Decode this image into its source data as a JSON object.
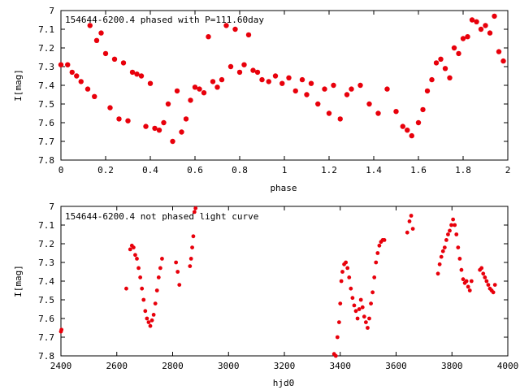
{
  "chart_data": [
    {
      "type": "scatter",
      "title": "154644-6200.4 phased with P=111.60day",
      "xlabel": "phase",
      "ylabel": "I[mag]",
      "xlim": [
        0,
        2
      ],
      "ylim": [
        7.8,
        7.0
      ],
      "y_inverted": true,
      "xticks": [
        "0",
        "0.2",
        "0.4",
        "0.6",
        "0.8",
        "1",
        "1.2",
        "1.4",
        "1.6",
        "1.8",
        "2"
      ],
      "yticks": [
        "7",
        "7.1",
        "7.2",
        "7.3",
        "7.4",
        "7.5",
        "7.6",
        "7.7",
        "7.8"
      ],
      "grid": false,
      "marker_color": "#e8000b",
      "series": [
        {
          "x": [
            0.0,
            0.03,
            0.05,
            0.07,
            0.09,
            0.12,
            0.13,
            0.15,
            0.16,
            0.18,
            0.2,
            0.22,
            0.24,
            0.26,
            0.28,
            0.3,
            0.32,
            0.34,
            0.36,
            0.38,
            0.4,
            0.42,
            0.44,
            0.46,
            0.48,
            0.5,
            0.52,
            0.54,
            0.56,
            0.58,
            0.6,
            0.62,
            0.64,
            0.66,
            0.68,
            0.7,
            0.72,
            0.74,
            0.76,
            0.78,
            0.8,
            0.82,
            0.84,
            0.86,
            0.88,
            0.9,
            0.93,
            0.96,
            0.99,
            1.02,
            1.05,
            1.08,
            1.1,
            1.12,
            1.15,
            1.18,
            1.2,
            1.22,
            1.25,
            1.28,
            1.3,
            1.34,
            1.38,
            1.42,
            1.46,
            1.5,
            1.53,
            1.55,
            1.57,
            1.6,
            1.62,
            1.64,
            1.66,
            1.68,
            1.7,
            1.72,
            1.74,
            1.76,
            1.78,
            1.8,
            1.82,
            1.84,
            1.86,
            1.88,
            1.9,
            1.92,
            1.94,
            1.96,
            1.98
          ],
          "y": [
            7.29,
            7.29,
            7.33,
            7.35,
            7.38,
            7.42,
            7.08,
            7.46,
            7.16,
            7.12,
            7.23,
            7.52,
            7.26,
            7.58,
            7.28,
            7.59,
            7.33,
            7.34,
            7.35,
            7.62,
            7.39,
            7.63,
            7.64,
            7.6,
            7.5,
            7.7,
            7.43,
            7.65,
            7.58,
            7.48,
            7.41,
            7.42,
            7.44,
            7.14,
            7.38,
            7.41,
            7.37,
            7.08,
            7.3,
            7.1,
            7.33,
            7.29,
            7.13,
            7.32,
            7.33,
            7.37,
            7.38,
            7.35,
            7.39,
            7.36,
            7.43,
            7.37,
            7.45,
            7.39,
            7.5,
            7.42,
            7.55,
            7.4,
            7.58,
            7.45,
            7.42,
            7.4,
            7.5,
            7.55,
            7.42,
            7.54,
            7.62,
            7.64,
            7.67,
            7.6,
            7.53,
            7.43,
            7.37,
            7.28,
            7.26,
            7.31,
            7.36,
            7.2,
            7.23,
            7.15,
            7.14,
            7.05,
            7.06,
            7.1,
            7.08,
            7.12,
            7.03,
            7.22,
            7.27
          ]
        }
      ]
    },
    {
      "type": "scatter",
      "title": "154644-6200.4 not phased light curve",
      "xlabel": "hjd0",
      "ylabel": "I[mag]",
      "xlim": [
        2400,
        4000
      ],
      "ylim": [
        7.8,
        7.0
      ],
      "y_inverted": true,
      "xticks": [
        "2400",
        "2600",
        "2800",
        "3000",
        "3200",
        "3400",
        "3600",
        "3800",
        "4000"
      ],
      "yticks": [
        "7",
        "7.1",
        "7.2",
        "7.3",
        "7.4",
        "7.5",
        "7.6",
        "7.7",
        "7.8"
      ],
      "grid": false,
      "marker_color": "#e8000b",
      "series": [
        {
          "x": [
            2400,
            2402,
            2634,
            2648,
            2654,
            2660,
            2666,
            2672,
            2678,
            2684,
            2690,
            2696,
            2702,
            2708,
            2714,
            2720,
            2726,
            2732,
            2738,
            2744,
            2750,
            2756,
            2762,
            2812,
            2818,
            2824,
            2862,
            2866,
            2870,
            2874,
            2878,
            2882,
            3378,
            3384,
            3390,
            3396,
            3400,
            3404,
            3408,
            3414,
            3420,
            3426,
            3432,
            3438,
            3444,
            3450,
            3456,
            3462,
            3468,
            3474,
            3480,
            3486,
            3492,
            3498,
            3504,
            3510,
            3516,
            3522,
            3528,
            3534,
            3540,
            3546,
            3552,
            3558,
            3640,
            3648,
            3654,
            3660,
            3750,
            3756,
            3762,
            3768,
            3774,
            3780,
            3786,
            3792,
            3798,
            3804,
            3810,
            3816,
            3822,
            3828,
            3834,
            3840,
            3846,
            3852,
            3858,
            3864,
            3870,
            3900,
            3906,
            3912,
            3918,
            3924,
            3930,
            3936,
            3942,
            3948,
            3954
          ],
          "y": [
            7.67,
            7.66,
            7.44,
            7.23,
            7.21,
            7.22,
            7.26,
            7.28,
            7.33,
            7.38,
            7.44,
            7.5,
            7.56,
            7.6,
            7.62,
            7.64,
            7.61,
            7.58,
            7.52,
            7.45,
            7.38,
            7.33,
            7.28,
            7.3,
            7.35,
            7.42,
            7.32,
            7.28,
            7.22,
            7.16,
            7.03,
            7.01,
            7.79,
            7.8,
            7.7,
            7.62,
            7.52,
            7.4,
            7.35,
            7.31,
            7.3,
            7.33,
            7.38,
            7.44,
            7.49,
            7.53,
            7.56,
            7.6,
            7.55,
            7.5,
            7.54,
            7.59,
            7.62,
            7.65,
            7.6,
            7.52,
            7.46,
            7.38,
            7.3,
            7.25,
            7.21,
            7.19,
            7.18,
            7.18,
            7.14,
            7.08,
            7.05,
            7.12,
            7.36,
            7.31,
            7.27,
            7.24,
            7.22,
            7.18,
            7.15,
            7.13,
            7.1,
            7.07,
            7.1,
            7.15,
            7.22,
            7.28,
            7.34,
            7.39,
            7.41,
            7.4,
            7.43,
            7.45,
            7.4,
            7.34,
            7.33,
            7.36,
            7.38,
            7.4,
            7.42,
            7.44,
            7.45,
            7.46,
            7.42
          ]
        }
      ]
    }
  ]
}
